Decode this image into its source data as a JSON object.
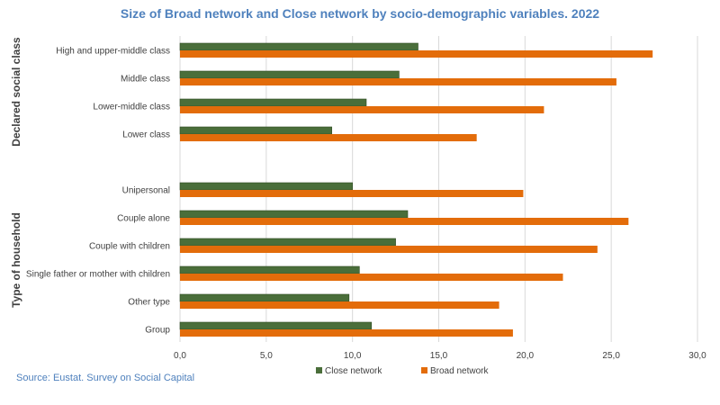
{
  "chart_data": {
    "type": "bar",
    "orientation": "horizontal",
    "title": "Size of Broad network and Close network by socio-demographic variables. 2022",
    "source": "Source: Eustat. Survey on Social Capital",
    "groups": [
      {
        "label": "Declared social class",
        "categories": [
          "High and upper-middle class",
          "Middle class",
          "Lower-middle class",
          "Lower class"
        ]
      },
      {
        "label": "Type of household",
        "categories": [
          "Unipersonal",
          "Couple alone",
          "Couple with children",
          "Single father or mother with children",
          "Other type",
          "Group"
        ]
      }
    ],
    "categories": [
      "High and upper-middle class",
      "Middle class",
      "Lower-middle class",
      "Lower class",
      "Unipersonal",
      "Couple alone",
      "Couple with children",
      "Single father or mother with children",
      "Other type",
      "Group"
    ],
    "series": [
      {
        "name": "Close network",
        "color": "#4a6e3a",
        "values": [
          13.8,
          12.7,
          10.8,
          8.8,
          10.0,
          13.2,
          12.5,
          10.4,
          9.8,
          11.1
        ]
      },
      {
        "name": "Broad network",
        "color": "#e36c0a",
        "values": [
          27.4,
          25.3,
          21.1,
          17.2,
          19.9,
          26.0,
          24.2,
          22.2,
          18.5,
          19.3
        ]
      }
    ],
    "xlim": [
      0,
      30
    ],
    "xticks": [
      "0,0",
      "5,0",
      "10,0",
      "15,0",
      "20,0",
      "25,0",
      "30,0"
    ],
    "xtick_values": [
      0,
      5,
      10,
      15,
      20,
      25,
      30
    ],
    "grid": true,
    "legend_position": "bottom",
    "colors": {
      "title": "#4f81bd",
      "source": "#4f81bd",
      "grid": "#d9d9d9"
    }
  }
}
